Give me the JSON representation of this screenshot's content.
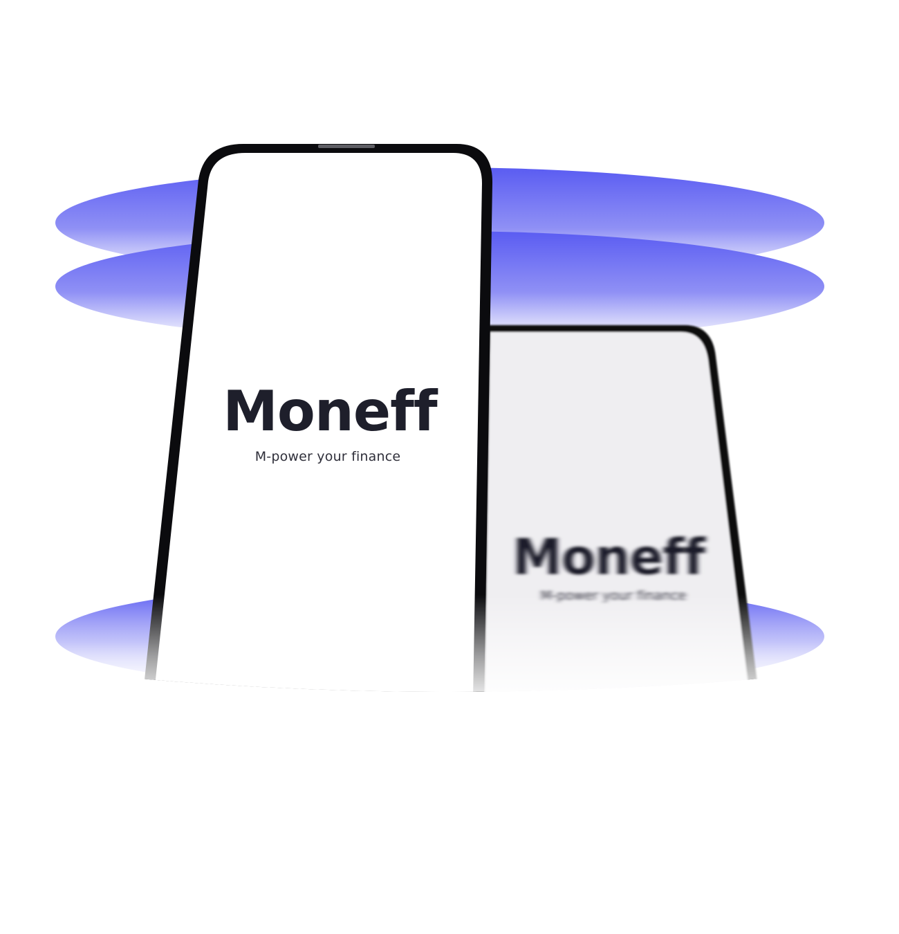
{
  "colors": {
    "accent": "#5a5cf2",
    "accent_light": "#b9baf8",
    "phone_frame": "#0b0b0e",
    "screen_front": "#ffffff",
    "screen_back": "#efeef1",
    "brand_text": "#1e1f2b"
  },
  "front_phone": {
    "brand_name": "Moneff",
    "tagline": "M-power your finance"
  },
  "back_phone": {
    "brand_name": "Moneff",
    "tagline": "M-power your finance"
  }
}
